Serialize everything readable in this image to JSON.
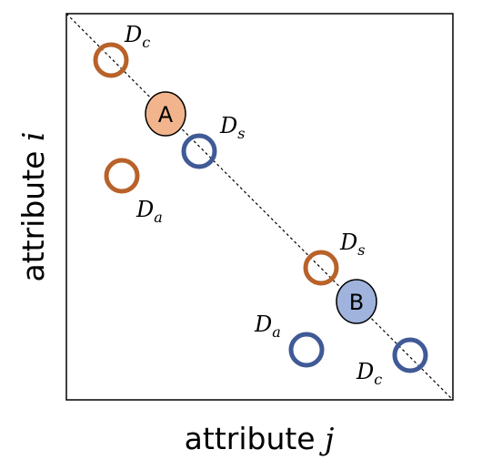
{
  "axes": {
    "x_title": {
      "text": "attribute ",
      "var": "j"
    },
    "y_title": {
      "text": "attribute ",
      "var": "i"
    }
  },
  "colors": {
    "orange": "#b8622a",
    "blue": "#3f5a96",
    "fill_orange": "#f2b48c",
    "fill_blue": "#9fb3dc",
    "frame": "#000000",
    "diagonal": "#000000"
  },
  "entities": {
    "A": {
      "letter": "A",
      "group": "orange"
    },
    "B": {
      "letter": "B",
      "group": "blue"
    }
  },
  "labels": {
    "orange_c": {
      "main": "D",
      "sub": "c"
    },
    "orange_s": {
      "main": "D",
      "sub": "s"
    },
    "orange_a": {
      "main": "D",
      "sub": "a"
    },
    "blue_s": {
      "main": "D",
      "sub": "s"
    },
    "blue_a": {
      "main": "D",
      "sub": "a"
    },
    "blue_c": {
      "main": "D",
      "sub": "c"
    }
  }
}
